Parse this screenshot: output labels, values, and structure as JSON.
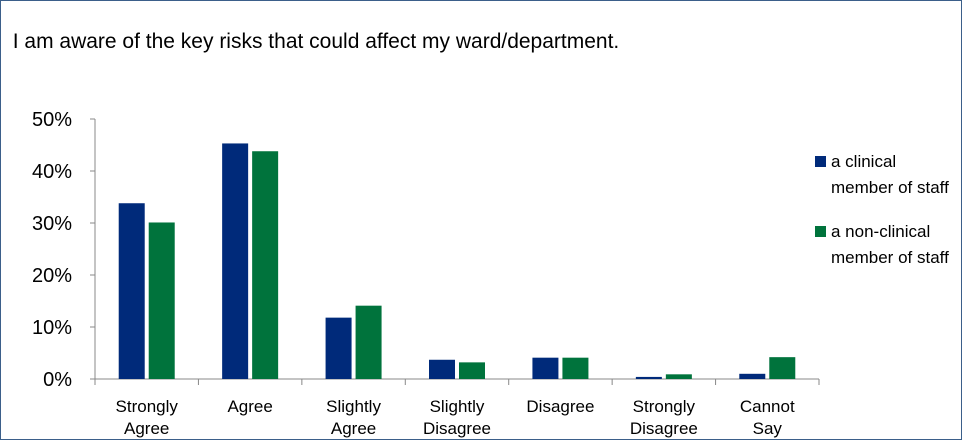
{
  "chart_data": {
    "type": "bar",
    "title": "I am aware of the key risks that could affect my ward/department.",
    "categories": [
      [
        "Strongly",
        "Agree"
      ],
      [
        "Agree"
      ],
      [
        "Slightly",
        "Agree"
      ],
      [
        "Slightly",
        "Disagree"
      ],
      [
        "Disagree"
      ],
      [
        "Strongly",
        "Disagree"
      ],
      [
        "Cannot",
        "Say"
      ]
    ],
    "series": [
      {
        "name": "a clinical member of staff",
        "color": "#002a7a",
        "values": [
          33.8,
          45.3,
          11.8,
          3.7,
          4.1,
          0.4,
          1.0
        ]
      },
      {
        "name": "a non-clinical member of staff",
        "color": "#00733c",
        "values": [
          30.1,
          43.8,
          14.1,
          3.2,
          4.1,
          0.9,
          4.2
        ]
      }
    ],
    "ylim": [
      0,
      50
    ],
    "yticks": [
      "0%",
      "10%",
      "20%",
      "30%",
      "40%",
      "50%"
    ],
    "grid": false,
    "legend": "right"
  }
}
